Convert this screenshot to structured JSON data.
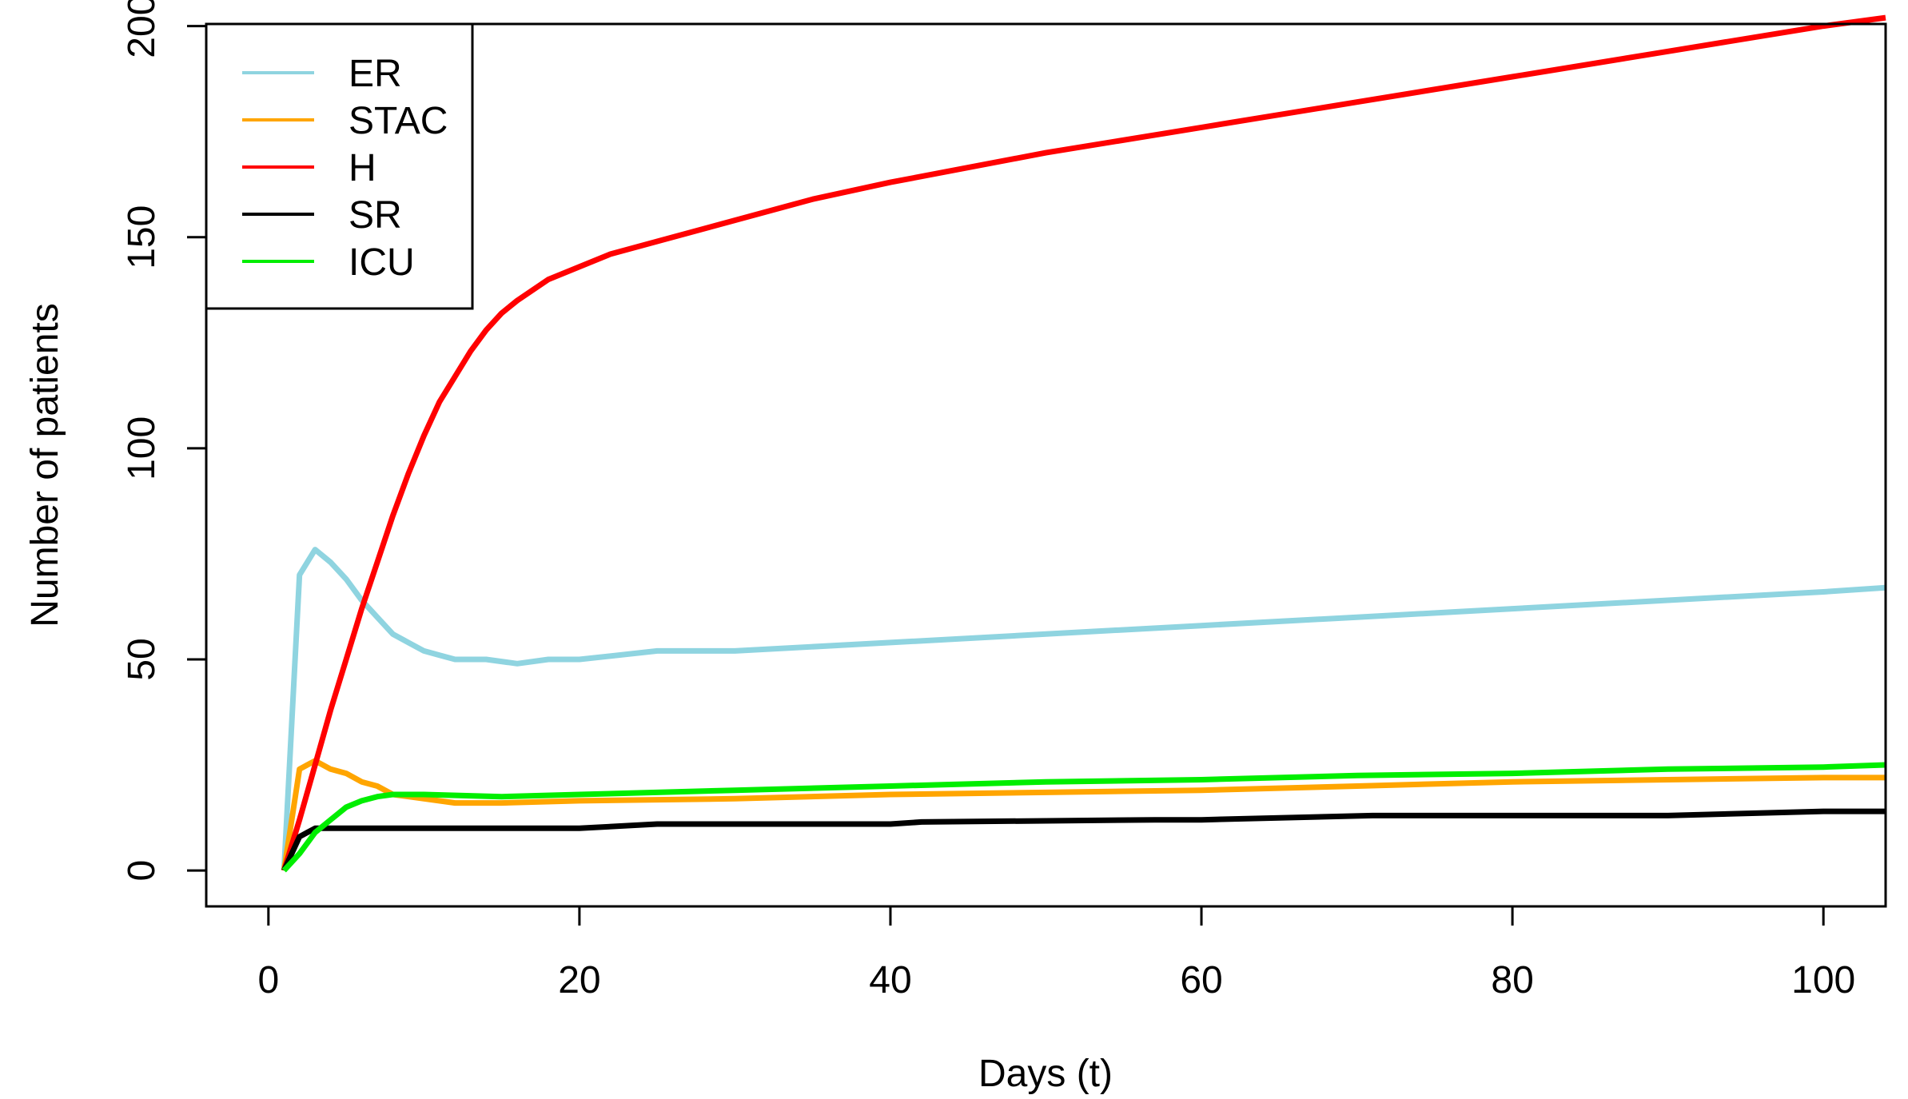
{
  "chart_data": {
    "type": "line",
    "title": "",
    "xlabel": "Days (t)",
    "ylabel": "Number of patients",
    "xlim": [
      -4,
      104
    ],
    "ylim": [
      -8.5,
      200.5
    ],
    "xticks": [
      0,
      20,
      40,
      60,
      80,
      100
    ],
    "yticks": [
      0,
      50,
      100,
      150,
      200
    ],
    "xtick_labels": [
      "0",
      "20",
      "40",
      "60",
      "80",
      "100"
    ],
    "ytick_labels": [
      "0",
      "50",
      "100",
      "150",
      "200"
    ],
    "grid": false,
    "legend": "top-left",
    "series": [
      {
        "name": "ER",
        "color": "#8fd4e0",
        "x": [
          1,
          2,
          3,
          4,
          5,
          6,
          7,
          8,
          9,
          10,
          11,
          12,
          14,
          16,
          18,
          20,
          25,
          30,
          40,
          50,
          60,
          70,
          80,
          90,
          100,
          104
        ],
        "y": [
          0,
          70,
          76,
          73,
          69,
          64,
          60,
          56,
          54,
          52,
          51,
          50,
          50,
          49,
          50,
          50,
          52,
          52,
          54,
          56,
          58,
          60,
          62,
          64,
          66,
          67
        ]
      },
      {
        "name": "STAC",
        "color": "#ffa500",
        "x": [
          1,
          2,
          3,
          4,
          5,
          6,
          7,
          8,
          10,
          12,
          15,
          20,
          30,
          40,
          50,
          60,
          70,
          80,
          90,
          100,
          104
        ],
        "y": [
          0,
          24,
          26,
          24,
          23,
          21,
          20,
          18,
          17,
          16,
          16,
          16.5,
          17,
          18,
          18.5,
          19,
          20,
          21,
          21.5,
          22,
          22
        ]
      },
      {
        "name": "H",
        "color": "#ff0000",
        "x": [
          1,
          2,
          3,
          4,
          5,
          6,
          7,
          8,
          9,
          10,
          11,
          12,
          13,
          14,
          15,
          16,
          18,
          20,
          22,
          25,
          30,
          35,
          40,
          50,
          60,
          70,
          80,
          90,
          100,
          104
        ],
        "y": [
          0,
          12,
          25,
          38,
          50,
          62,
          73,
          84,
          94,
          103,
          111,
          117,
          123,
          128,
          132,
          135,
          140,
          143,
          146,
          149,
          154,
          159,
          163,
          170,
          176,
          182,
          188,
          194,
          200,
          202
        ]
      },
      {
        "name": "SR",
        "color": "#000000",
        "x": [
          1,
          2,
          3,
          5,
          10,
          20,
          25,
          30,
          40,
          42,
          57,
          60,
          71,
          80,
          90,
          100,
          104
        ],
        "y": [
          0,
          8,
          10,
          10,
          10,
          10,
          11,
          11,
          11,
          11.5,
          12,
          12,
          13,
          13,
          13,
          14,
          14
        ]
      },
      {
        "name": "ICU",
        "color": "#00ee00",
        "x": [
          1,
          2,
          3,
          4,
          5,
          6,
          7,
          8,
          9,
          10,
          15,
          20,
          30,
          40,
          50,
          60,
          70,
          80,
          90,
          100,
          104
        ],
        "y": [
          0,
          4,
          9,
          12,
          15,
          16.5,
          17.5,
          18,
          18,
          18,
          17.5,
          18,
          19,
          20,
          21,
          21.5,
          22.5,
          23,
          24,
          24.5,
          25
        ]
      }
    ]
  }
}
